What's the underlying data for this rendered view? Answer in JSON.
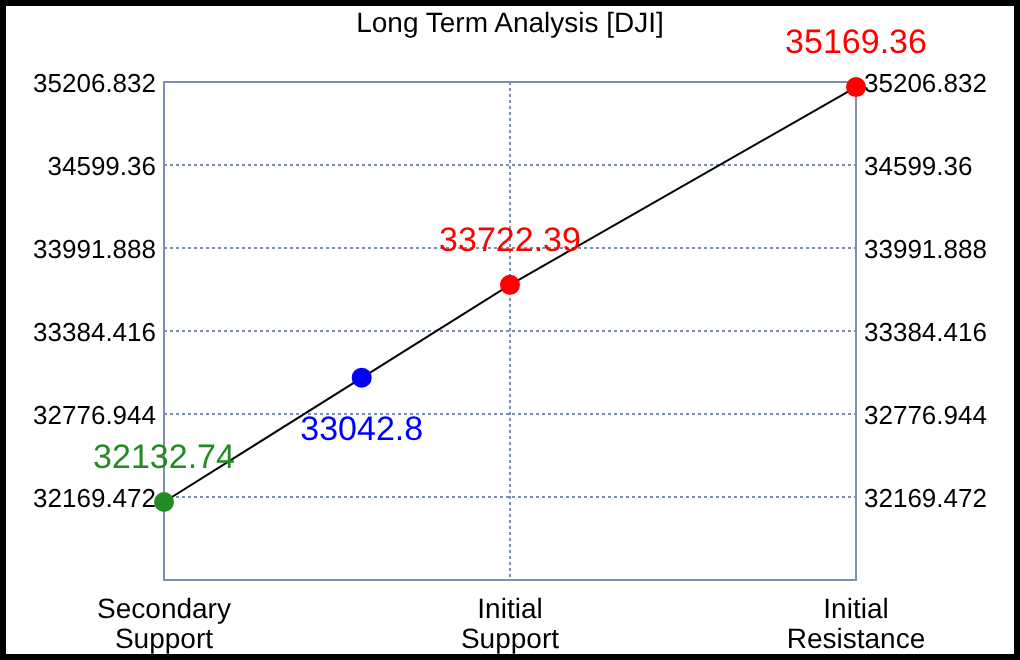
{
  "chart_data": {
    "type": "line",
    "title": "Long Term Analysis [DJI]",
    "categories": [
      "Secondary\nSupport",
      null,
      null,
      null,
      null,
      null,
      null,
      "Initial\nSupport",
      null,
      null,
      null,
      null,
      null,
      null,
      "Initial\nResistance"
    ],
    "ylim": [
      31562,
      35206.832
    ],
    "yticks": [
      32169.472,
      32776.944,
      33384.416,
      33991.888,
      34599.36,
      35206.832
    ],
    "y2lim": [
      31562,
      35206.832
    ],
    "y2ticks": [
      32169.472,
      32776.944,
      33384.416,
      33991.888,
      34599.36,
      35206.832
    ],
    "grid": true,
    "marker": "circle",
    "data_labels": true,
    "series": [
      {
        "color": "#000000",
        "values": [
          32132.74,
          null,
          null,
          null,
          null,
          null,
          null,
          33722.39,
          null,
          null,
          null,
          null,
          null,
          null,
          35169.36
        ],
        "colors": [
          "#228b22",
          null,
          null,
          null,
          null,
          null,
          null,
          "#ff0000",
          null,
          null,
          null,
          null,
          null,
          null,
          "#ff0000"
        ]
      },
      {
        "type": "scatter",
        "color": "#0000ff",
        "values": [
          null,
          null,
          null,
          null,
          33042.8,
          null,
          null,
          null,
          null,
          null,
          null,
          null,
          null,
          null,
          null
        ]
      }
    ]
  }
}
